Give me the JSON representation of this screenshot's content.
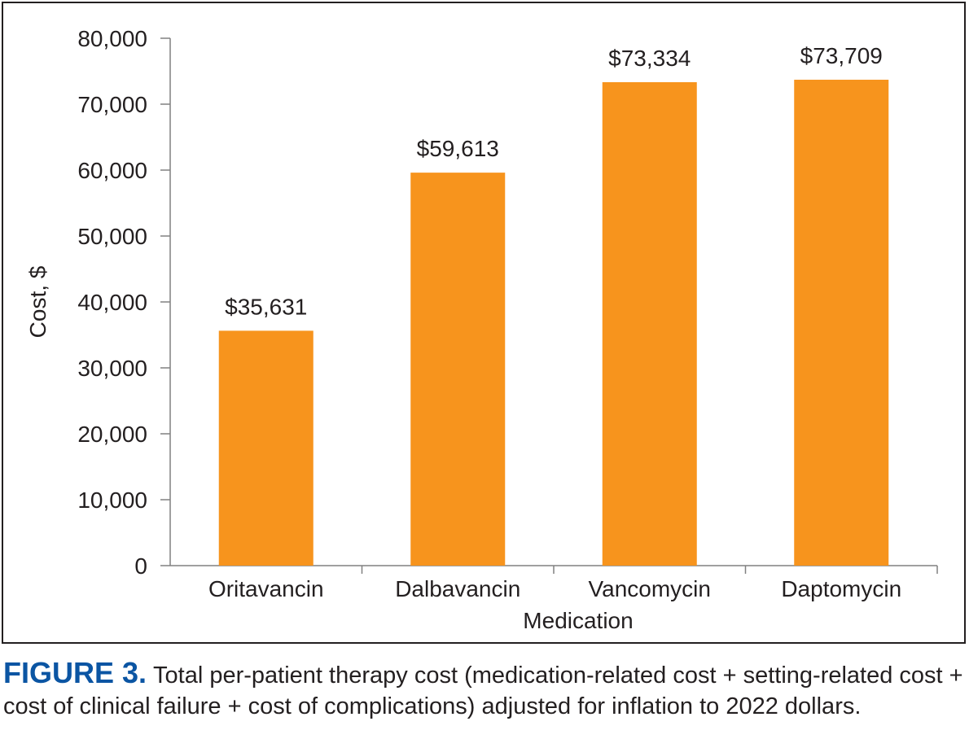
{
  "chart_data": {
    "type": "bar",
    "categories": [
      "Oritavancin",
      "Dalbavancin",
      "Vancomycin",
      "Daptomycin"
    ],
    "values": [
      35631,
      59613,
      73334,
      73709
    ],
    "data_labels": [
      "$35,631",
      "$59,613",
      "$73,334",
      "$73,709"
    ],
    "xlabel": "Medication",
    "ylabel": "Cost, $",
    "ylim": [
      0,
      80000
    ],
    "yticks": [
      0,
      10000,
      20000,
      30000,
      40000,
      50000,
      60000,
      70000,
      80000
    ],
    "ytick_labels": [
      "0",
      "10,000",
      "20,000",
      "30,000",
      "40,000",
      "50,000",
      "60,000",
      "70,000",
      "80,000"
    ],
    "grid": false,
    "legend": "none",
    "bar_color": "#f7941d",
    "axis_color": "#808080"
  },
  "caption": {
    "label": "FIGURE 3.",
    "text": "Total per-patient therapy cost (medication-related cost + setting-related cost + cost of clinical failure + cost of complications) adjusted for inflation to 2022 dollars.",
    "label_color": "#0b55a3"
  }
}
